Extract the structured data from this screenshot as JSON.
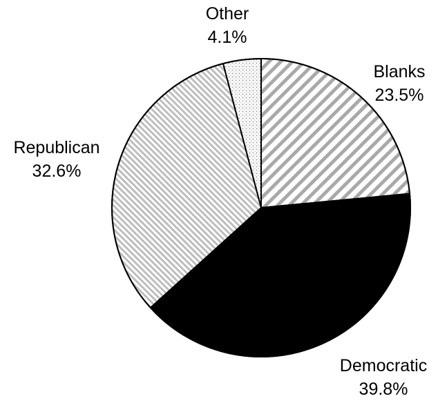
{
  "chart_data": {
    "type": "pie",
    "title": "",
    "start_angle_deg": 0,
    "direction": "clockwise",
    "slices": [
      {
        "name": "Blanks",
        "label": "Blanks",
        "value": 23.5,
        "value_label": "23.5%",
        "fill": "diagonal-hatch-gray",
        "fill_color": "#b0b0b0"
      },
      {
        "name": "Democratic",
        "label": "Democratic",
        "value": 39.8,
        "value_label": "39.8%",
        "fill": "solid",
        "fill_color": "#000000"
      },
      {
        "name": "Republican",
        "label": "Republican",
        "value": 32.6,
        "value_label": "32.6%",
        "fill": "fine-diagonal-hatch",
        "fill_color": "#c8c8c8"
      },
      {
        "name": "Other",
        "label": "Other",
        "value": 4.1,
        "value_label": "4.1%",
        "fill": "dotted",
        "fill_color": "#c0c0c0"
      }
    ],
    "legend": "none",
    "outline_color": "#000000"
  }
}
